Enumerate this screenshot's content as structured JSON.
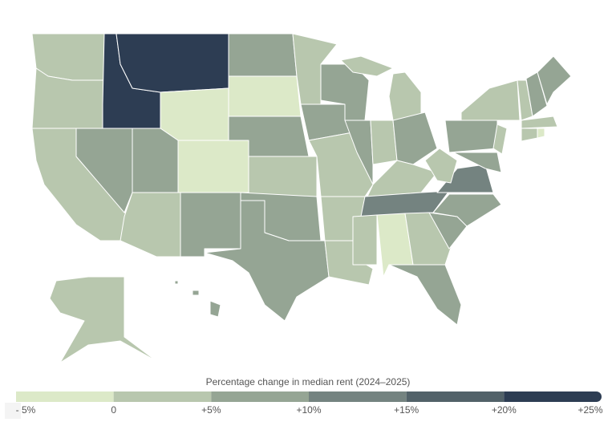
{
  "legend": {
    "title": "Percentage change in median rent (2024–2025)",
    "xlim": [
      -5,
      25
    ],
    "ticks": [
      {
        "value": -5,
        "label": "- 5%"
      },
      0,
      {
        "value": 5,
        "label": "+5%"
      },
      {
        "value": 10,
        "label": "+10%"
      },
      {
        "value": 15,
        "label": "+15%"
      },
      {
        "value": 20,
        "label": "+20%"
      },
      {
        "value": 25,
        "label": "+25%"
      }
    ],
    "colors": [
      "#dce9c8",
      "#b8c7ae",
      "#95a594",
      "#748380",
      "#526269",
      "#2d3d53"
    ]
  }
}
